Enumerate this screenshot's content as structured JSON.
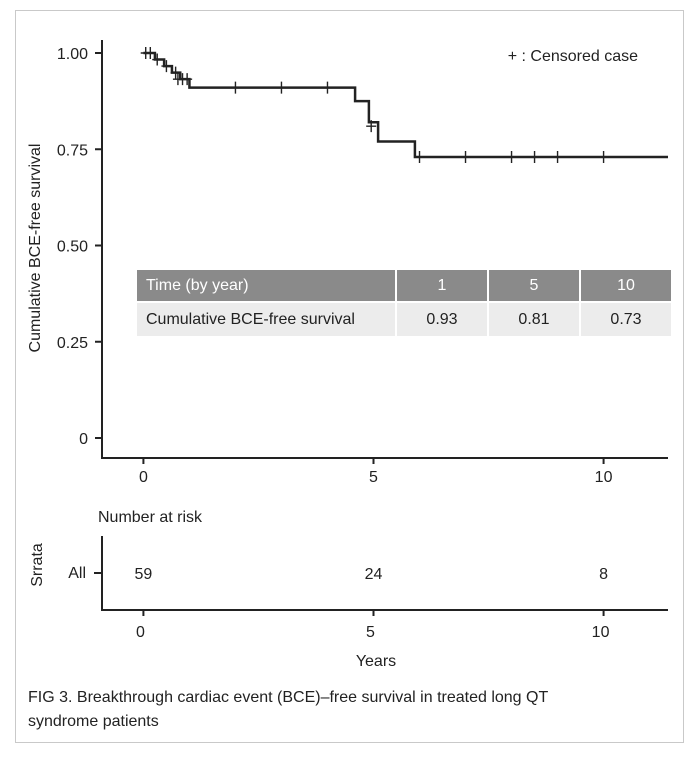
{
  "chart_data": {
    "type": "line",
    "ylabel": "Cumulative BCE-free survival",
    "xlabel": "Years",
    "xlim": [
      -0.9,
      11.4
    ],
    "ylim": [
      0,
      1.0
    ],
    "x_ticks": [
      "0",
      "5",
      "10"
    ],
    "x_tick_values": [
      0,
      5,
      10
    ],
    "y_ticks": [
      "1.00",
      "0.75",
      "0.50",
      "0.25",
      "0"
    ],
    "y_tick_values": [
      1.0,
      0.75,
      0.5,
      0.25,
      0
    ],
    "legend": "+ : Censored case",
    "series": [
      {
        "steps": [
          [
            0,
            1.0
          ],
          [
            0.25,
            0.983
          ],
          [
            0.45,
            0.966
          ],
          [
            0.62,
            0.949
          ],
          [
            0.8,
            0.932
          ],
          [
            1.0,
            0.91
          ],
          [
            4.6,
            0.875
          ],
          [
            4.9,
            0.82
          ],
          [
            5.1,
            0.77
          ],
          [
            5.9,
            0.73
          ],
          [
            11.4,
            0.73
          ]
        ],
        "censored": [
          [
            0.05,
            1.0
          ],
          [
            0.15,
            1.0
          ],
          [
            0.3,
            0.983
          ],
          [
            0.5,
            0.966
          ],
          [
            0.7,
            0.949
          ],
          [
            0.75,
            0.932
          ],
          [
            0.85,
            0.932
          ],
          [
            0.95,
            0.932
          ],
          [
            2.0,
            0.91
          ],
          [
            3.0,
            0.91
          ],
          [
            4.0,
            0.91
          ],
          [
            4.95,
            0.81
          ],
          [
            6.0,
            0.73
          ],
          [
            7.0,
            0.73
          ],
          [
            8.0,
            0.73
          ],
          [
            8.5,
            0.73
          ],
          [
            9.0,
            0.73
          ],
          [
            10.0,
            0.73
          ]
        ]
      }
    ]
  },
  "survival_table": {
    "header_label": "Time (by year)",
    "header_values": [
      "1",
      "5",
      "10"
    ],
    "row_label": "Cumulative BCE-free survival",
    "row_values": [
      "0.93",
      "0.81",
      "0.73"
    ]
  },
  "risk_table": {
    "title": "Number at risk",
    "strata_label": "Srrata",
    "row_label": "All",
    "values": [
      "59",
      "24",
      "8"
    ],
    "x_ticks": [
      "0",
      "5",
      "10"
    ],
    "xlabel": "Years"
  },
  "caption": {
    "line1": "FIG 3.  Breakthrough cardiac event (BCE)–free survival in treated long QT",
    "line2": "syndrome patients"
  }
}
